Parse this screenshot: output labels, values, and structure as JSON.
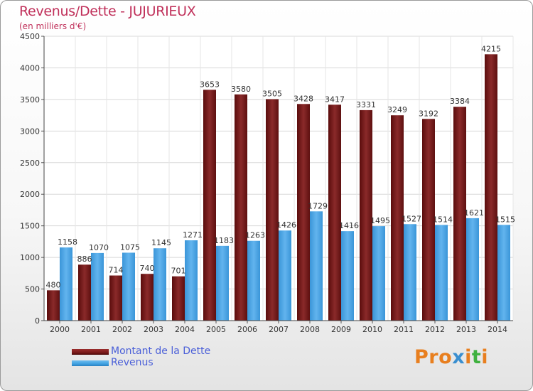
{
  "title": "Revenus/Dette - JUJURIEUX",
  "subtitle": "(en milliers d'€)",
  "legend": [
    {
      "label": "Montant de la Dette",
      "color": "#7a1a1a"
    },
    {
      "label": "Revenus",
      "color": "#3fa0e0"
    }
  ],
  "logo": {
    "text": "Proxiti",
    "colors": [
      "#e87f1f",
      "#e87f1f",
      "#e87f1f",
      "#3a8fd0",
      "#e87f1f",
      "#3fb13f",
      "#e87f1f"
    ]
  },
  "chart_data": {
    "type": "bar",
    "categories": [
      "2000",
      "2001",
      "2002",
      "2003",
      "2004",
      "2005",
      "2006",
      "2007",
      "2008",
      "2009",
      "2010",
      "2011",
      "2012",
      "2013",
      "2014"
    ],
    "series": [
      {
        "name": "Montant de la Dette",
        "color": "#7a1a1a",
        "values": [
          480,
          886,
          714,
          740,
          701,
          3653,
          3580,
          3505,
          3428,
          3417,
          3331,
          3249,
          3192,
          3384,
          4215
        ]
      },
      {
        "name": "Revenus",
        "color": "#3fa0e0",
        "values": [
          1158,
          1070,
          1075,
          1145,
          1271,
          1183,
          1263,
          1426,
          1729,
          1416,
          1495,
          1527,
          1514,
          1621,
          1515
        ]
      }
    ],
    "yticks": [
      0,
      500,
      1000,
      1500,
      2000,
      2500,
      3000,
      3500,
      4000,
      4500
    ],
    "ylim": [
      0,
      4500
    ],
    "grid": true,
    "legend_position": "bottom-left"
  }
}
